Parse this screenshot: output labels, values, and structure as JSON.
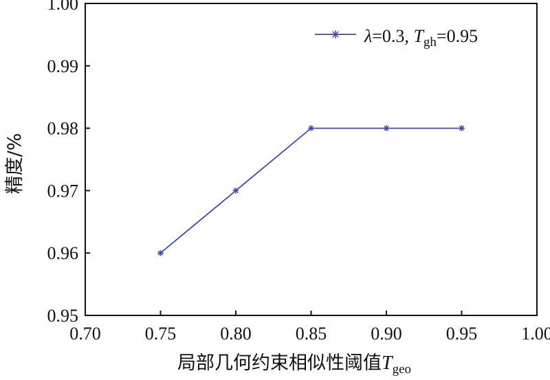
{
  "chart_data": {
    "type": "line",
    "xlabel": {
      "main": "局部几何约束相似性阈值",
      "symbol": "T",
      "subscript": "geo"
    },
    "ylabel": "精度/%",
    "xlim": [
      0.7,
      1.0
    ],
    "ylim": [
      0.95,
      1.0
    ],
    "x_ticks": [
      "0.70",
      "0.75",
      "0.80",
      "0.85",
      "0.90",
      "0.95",
      "1.00"
    ],
    "y_ticks": [
      "0.95",
      "0.96",
      "0.97",
      "0.98",
      "0.99",
      "1.00"
    ],
    "grid": false,
    "legend_position": "top-right",
    "series": [
      {
        "legend": {
          "lambda_sym": "λ",
          "lambda_text": "=0.3, ",
          "t_sym": "T",
          "t_sub": "gh",
          "t_text": "=0.95"
        },
        "color": "#3f48a8",
        "marker": "asterisk",
        "x": [
          0.75,
          0.8,
          0.85,
          0.9,
          0.95
        ],
        "y": [
          0.96,
          0.97,
          0.98,
          0.98,
          0.98
        ]
      }
    ]
  }
}
